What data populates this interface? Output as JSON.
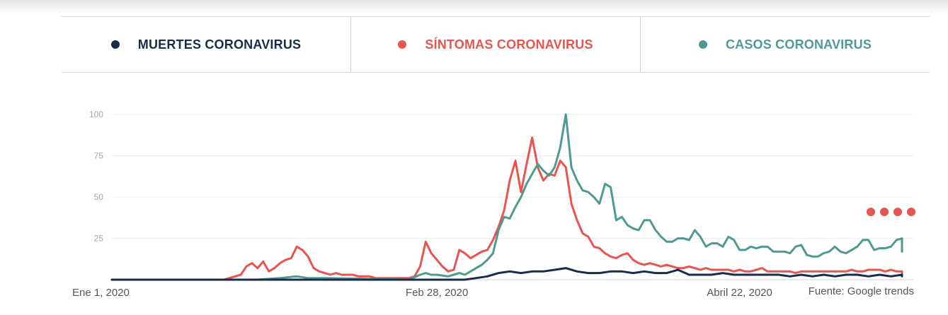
{
  "legend": {
    "items": [
      {
        "label": "MUERTES CORONAVIRUS",
        "color": "#1a2b4c"
      },
      {
        "label": "SÍNTOMAS CORONAVIRUS",
        "color": "#e8554e"
      },
      {
        "label": "CASOS CORONAVIRUS",
        "color": "#4e9a92"
      }
    ]
  },
  "source": "Fuente: Google trends",
  "more_indicator_color": "#e8554e",
  "chart_data": {
    "type": "line",
    "title": "",
    "xlabel": "",
    "ylabel": "",
    "ylim": [
      0,
      100
    ],
    "yticks": [
      25,
      50,
      75,
      100
    ],
    "grid": true,
    "legend_position": "top",
    "xlim": [
      "2020-01-01",
      "2020-05-23"
    ],
    "x_tick_labels": [
      {
        "date": "2020-01-01",
        "label": "Ene 1, 2020"
      },
      {
        "date": "2020-02-28",
        "label": "Feb 28, 2020"
      },
      {
        "date": "2020-04-22",
        "label": "Abril 22, 2020"
      }
    ],
    "series": [
      {
        "name": "SÍNTOMAS CORONAVIRUS",
        "color": "#e8554e",
        "points": [
          [
            "2020-01-01",
            0
          ],
          [
            "2020-01-21",
            0
          ],
          [
            "2020-01-24",
            3
          ],
          [
            "2020-01-25",
            8
          ],
          [
            "2020-01-26",
            10
          ],
          [
            "2020-01-27",
            7
          ],
          [
            "2020-01-28",
            11
          ],
          [
            "2020-01-29",
            5
          ],
          [
            "2020-01-30",
            7
          ],
          [
            "2020-01-31",
            10
          ],
          [
            "2020-02-01",
            12
          ],
          [
            "2020-02-02",
            13
          ],
          [
            "2020-02-03",
            20
          ],
          [
            "2020-02-04",
            18
          ],
          [
            "2020-02-05",
            14
          ],
          [
            "2020-02-06",
            7
          ],
          [
            "2020-02-07",
            5
          ],
          [
            "2020-02-08",
            4
          ],
          [
            "2020-02-09",
            3
          ],
          [
            "2020-02-10",
            4
          ],
          [
            "2020-02-11",
            3
          ],
          [
            "2020-02-12",
            3
          ],
          [
            "2020-02-13",
            3
          ],
          [
            "2020-02-14",
            2
          ],
          [
            "2020-02-15",
            2
          ],
          [
            "2020-02-16",
            2
          ],
          [
            "2020-02-17",
            1
          ],
          [
            "2020-02-18",
            1
          ],
          [
            "2020-02-19",
            1
          ],
          [
            "2020-02-20",
            1
          ],
          [
            "2020-02-21",
            1
          ],
          [
            "2020-02-22",
            1
          ],
          [
            "2020-02-23",
            1
          ],
          [
            "2020-02-24",
            2
          ],
          [
            "2020-02-25",
            8
          ],
          [
            "2020-02-26",
            23
          ],
          [
            "2020-02-27",
            16
          ],
          [
            "2020-02-28",
            12
          ],
          [
            "2020-02-29",
            8
          ],
          [
            "2020-03-01",
            5
          ],
          [
            "2020-03-02",
            6
          ],
          [
            "2020-03-03",
            18
          ],
          [
            "2020-03-04",
            16
          ],
          [
            "2020-03-05",
            13
          ],
          [
            "2020-03-06",
            15
          ],
          [
            "2020-03-07",
            17
          ],
          [
            "2020-03-08",
            18
          ],
          [
            "2020-03-09",
            24
          ],
          [
            "2020-03-10",
            32
          ],
          [
            "2020-03-11",
            42
          ],
          [
            "2020-03-12",
            60
          ],
          [
            "2020-03-13",
            72
          ],
          [
            "2020-03-14",
            53
          ],
          [
            "2020-03-15",
            70
          ],
          [
            "2020-03-16",
            86
          ],
          [
            "2020-03-17",
            68
          ],
          [
            "2020-03-18",
            60
          ],
          [
            "2020-03-19",
            64
          ],
          [
            "2020-03-20",
            63
          ],
          [
            "2020-03-21",
            72
          ],
          [
            "2020-03-22",
            68
          ],
          [
            "2020-03-23",
            46
          ],
          [
            "2020-03-24",
            36
          ],
          [
            "2020-03-25",
            28
          ],
          [
            "2020-03-26",
            26
          ],
          [
            "2020-03-27",
            20
          ],
          [
            "2020-03-28",
            19
          ],
          [
            "2020-03-29",
            16
          ],
          [
            "2020-03-30",
            14
          ],
          [
            "2020-03-31",
            13
          ],
          [
            "2020-04-01",
            15
          ],
          [
            "2020-04-02",
            16
          ],
          [
            "2020-04-03",
            12
          ],
          [
            "2020-04-04",
            10
          ],
          [
            "2020-04-05",
            9
          ],
          [
            "2020-04-06",
            10
          ],
          [
            "2020-04-07",
            9
          ],
          [
            "2020-04-08",
            8
          ],
          [
            "2020-04-09",
            9
          ],
          [
            "2020-04-10",
            8
          ],
          [
            "2020-04-11",
            7
          ],
          [
            "2020-04-12",
            7
          ],
          [
            "2020-04-13",
            8
          ],
          [
            "2020-04-14",
            7
          ],
          [
            "2020-04-15",
            6
          ],
          [
            "2020-04-16",
            7
          ],
          [
            "2020-04-17",
            6
          ],
          [
            "2020-04-18",
            6
          ],
          [
            "2020-04-19",
            6
          ],
          [
            "2020-04-20",
            6
          ],
          [
            "2020-04-21",
            5
          ],
          [
            "2020-04-22",
            6
          ],
          [
            "2020-04-23",
            5
          ],
          [
            "2020-04-24",
            5
          ],
          [
            "2020-04-25",
            6
          ],
          [
            "2020-04-26",
            7
          ],
          [
            "2020-04-27",
            5
          ],
          [
            "2020-04-28",
            5
          ],
          [
            "2020-04-29",
            5
          ],
          [
            "2020-04-30",
            5
          ],
          [
            "2020-05-01",
            5
          ],
          [
            "2020-05-02",
            4
          ],
          [
            "2020-05-03",
            5
          ],
          [
            "2020-05-04",
            5
          ],
          [
            "2020-05-05",
            5
          ],
          [
            "2020-05-06",
            5
          ],
          [
            "2020-05-07",
            5
          ],
          [
            "2020-05-08",
            5
          ],
          [
            "2020-05-09",
            5
          ],
          [
            "2020-05-10",
            5
          ],
          [
            "2020-05-11",
            5
          ],
          [
            "2020-05-12",
            6
          ],
          [
            "2020-05-13",
            5
          ],
          [
            "2020-05-14",
            5
          ],
          [
            "2020-05-15",
            6
          ],
          [
            "2020-05-16",
            6
          ],
          [
            "2020-05-17",
            6
          ],
          [
            "2020-05-18",
            5
          ],
          [
            "2020-05-19",
            6
          ],
          [
            "2020-05-20",
            5
          ],
          [
            "2020-05-21",
            5
          ],
          [
            "2020-05-22",
            4
          ]
        ]
      },
      {
        "name": "CASOS CORONAVIRUS",
        "color": "#4e9a92",
        "points": [
          [
            "2020-01-01",
            0
          ],
          [
            "2020-01-27",
            0
          ],
          [
            "2020-01-31",
            1
          ],
          [
            "2020-02-03",
            2
          ],
          [
            "2020-02-05",
            1
          ],
          [
            "2020-02-08",
            1
          ],
          [
            "2020-02-23",
            0
          ],
          [
            "2020-02-25",
            3
          ],
          [
            "2020-02-26",
            4
          ],
          [
            "2020-02-27",
            3
          ],
          [
            "2020-02-28",
            3
          ],
          [
            "2020-03-01",
            2
          ],
          [
            "2020-03-02",
            3
          ],
          [
            "2020-03-03",
            4
          ],
          [
            "2020-03-04",
            3
          ],
          [
            "2020-03-05",
            5
          ],
          [
            "2020-03-06",
            7
          ],
          [
            "2020-03-07",
            9
          ],
          [
            "2020-03-08",
            12
          ],
          [
            "2020-03-09",
            16
          ],
          [
            "2020-03-10",
            30
          ],
          [
            "2020-03-11",
            38
          ],
          [
            "2020-03-12",
            37
          ],
          [
            "2020-03-13",
            44
          ],
          [
            "2020-03-14",
            50
          ],
          [
            "2020-03-15",
            58
          ],
          [
            "2020-03-16",
            64
          ],
          [
            "2020-03-17",
            70
          ],
          [
            "2020-03-18",
            66
          ],
          [
            "2020-03-19",
            63
          ],
          [
            "2020-03-20",
            68
          ],
          [
            "2020-03-21",
            80
          ],
          [
            "2020-03-22",
            100
          ],
          [
            "2020-03-23",
            68
          ],
          [
            "2020-03-24",
            60
          ],
          [
            "2020-03-25",
            54
          ],
          [
            "2020-03-26",
            53
          ],
          [
            "2020-03-27",
            50
          ],
          [
            "2020-03-28",
            46
          ],
          [
            "2020-03-29",
            58
          ],
          [
            "2020-03-30",
            56
          ],
          [
            "2020-03-31",
            36
          ],
          [
            "2020-04-01",
            38
          ],
          [
            "2020-04-02",
            33
          ],
          [
            "2020-04-03",
            31
          ],
          [
            "2020-04-04",
            30
          ],
          [
            "2020-04-05",
            36
          ],
          [
            "2020-04-06",
            36
          ],
          [
            "2020-04-07",
            30
          ],
          [
            "2020-04-08",
            26
          ],
          [
            "2020-04-09",
            23
          ],
          [
            "2020-04-10",
            23
          ],
          [
            "2020-04-11",
            25
          ],
          [
            "2020-04-12",
            25
          ],
          [
            "2020-04-13",
            24
          ],
          [
            "2020-04-14",
            30
          ],
          [
            "2020-04-15",
            26
          ],
          [
            "2020-04-16",
            20
          ],
          [
            "2020-04-17",
            22
          ],
          [
            "2020-04-18",
            22
          ],
          [
            "2020-04-19",
            20
          ],
          [
            "2020-04-20",
            26
          ],
          [
            "2020-04-21",
            24
          ],
          [
            "2020-04-22",
            18
          ],
          [
            "2020-04-23",
            18
          ],
          [
            "2020-04-24",
            20
          ],
          [
            "2020-04-25",
            19
          ],
          [
            "2020-04-26",
            20
          ],
          [
            "2020-04-27",
            20
          ],
          [
            "2020-04-28",
            17
          ],
          [
            "2020-04-29",
            17
          ],
          [
            "2020-04-30",
            17
          ],
          [
            "2020-05-01",
            16
          ],
          [
            "2020-05-02",
            20
          ],
          [
            "2020-05-03",
            21
          ],
          [
            "2020-05-04",
            15
          ],
          [
            "2020-05-05",
            14
          ],
          [
            "2020-05-06",
            14
          ],
          [
            "2020-05-07",
            16
          ],
          [
            "2020-05-08",
            17
          ],
          [
            "2020-05-09",
            20
          ],
          [
            "2020-05-10",
            17
          ],
          [
            "2020-05-11",
            16
          ],
          [
            "2020-05-12",
            18
          ],
          [
            "2020-05-13",
            20
          ],
          [
            "2020-05-14",
            24
          ],
          [
            "2020-05-15",
            24
          ],
          [
            "2020-05-16",
            18
          ],
          [
            "2020-05-17",
            19
          ],
          [
            "2020-05-18",
            19
          ],
          [
            "2020-05-19",
            20
          ],
          [
            "2020-05-20",
            24
          ],
          [
            "2020-05-21",
            25
          ],
          [
            "2020-05-22",
            24
          ],
          [
            "2020-05-23",
            19
          ],
          [
            "2020-05-24",
            20
          ],
          [
            "2020-05-25",
            18
          ],
          [
            "2020-05-26",
            20
          ],
          [
            "2020-05-27",
            21
          ],
          [
            "2020-05-28",
            21
          ],
          [
            "2020-05-29",
            17
          ]
        ]
      },
      {
        "name": "MUERTES CORONAVIRUS",
        "color": "#1a2b4c",
        "points": [
          [
            "2020-01-01",
            0
          ],
          [
            "2020-03-04",
            0
          ],
          [
            "2020-03-06",
            1
          ],
          [
            "2020-03-08",
            2
          ],
          [
            "2020-03-10",
            4
          ],
          [
            "2020-03-12",
            5
          ],
          [
            "2020-03-14",
            4
          ],
          [
            "2020-03-16",
            5
          ],
          [
            "2020-03-18",
            5
          ],
          [
            "2020-03-20",
            6
          ],
          [
            "2020-03-22",
            7
          ],
          [
            "2020-03-24",
            5
          ],
          [
            "2020-03-26",
            4
          ],
          [
            "2020-03-28",
            4
          ],
          [
            "2020-03-30",
            5
          ],
          [
            "2020-04-01",
            5
          ],
          [
            "2020-04-03",
            4
          ],
          [
            "2020-04-05",
            5
          ],
          [
            "2020-04-07",
            4
          ],
          [
            "2020-04-09",
            4
          ],
          [
            "2020-04-11",
            6
          ],
          [
            "2020-04-13",
            3
          ],
          [
            "2020-04-15",
            3
          ],
          [
            "2020-04-17",
            3
          ],
          [
            "2020-04-19",
            4
          ],
          [
            "2020-04-21",
            3
          ],
          [
            "2020-04-23",
            3
          ],
          [
            "2020-04-25",
            3
          ],
          [
            "2020-04-27",
            3
          ],
          [
            "2020-04-29",
            3
          ],
          [
            "2020-05-01",
            2
          ],
          [
            "2020-05-03",
            3
          ],
          [
            "2020-05-05",
            2
          ],
          [
            "2020-05-07",
            3
          ],
          [
            "2020-05-09",
            2
          ],
          [
            "2020-05-11",
            3
          ],
          [
            "2020-05-13",
            3
          ],
          [
            "2020-05-15",
            2
          ],
          [
            "2020-05-17",
            3
          ],
          [
            "2020-05-19",
            2
          ],
          [
            "2020-05-21",
            3
          ],
          [
            "2020-05-23",
            2
          ],
          [
            "2020-05-25",
            2
          ],
          [
            "2020-05-27",
            2
          ],
          [
            "2020-05-29",
            3
          ]
        ]
      }
    ]
  }
}
